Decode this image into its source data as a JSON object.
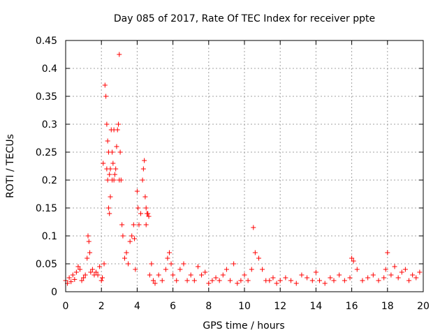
{
  "chart_data": {
    "type": "scatter",
    "title": "Day 085 of 2017, Rate Of TEC Index for receiver ppte",
    "xlabel": "GPS time / hours",
    "ylabel": "ROTI / TECUs",
    "xlim": [
      0,
      20
    ],
    "ylim": [
      0,
      0.45
    ],
    "grid": true,
    "marker": "plus",
    "color": "#ff0000",
    "x_ticks": [
      "0",
      "2",
      "4",
      "6",
      "8",
      "10",
      "12",
      "14",
      "16",
      "18",
      "20"
    ],
    "y_ticks": [
      "0",
      "0.05",
      "0.1",
      "0.15",
      "0.2",
      "0.25",
      "0.3",
      "0.35",
      "0.4",
      "0.45"
    ],
    "series": [
      {
        "name": "ROTI",
        "x": [
          0.0,
          0.1,
          0.2,
          0.3,
          0.4,
          0.5,
          0.6,
          0.7,
          0.8,
          0.9,
          1.0,
          1.1,
          1.2,
          1.25,
          1.3,
          1.35,
          1.4,
          1.5,
          1.6,
          1.7,
          1.8,
          1.9,
          2.0,
          2.05,
          2.1,
          2.15,
          2.2,
          2.25,
          2.3,
          2.3,
          2.35,
          2.35,
          2.4,
          2.4,
          2.45,
          2.45,
          2.5,
          2.5,
          2.55,
          2.6,
          2.6,
          2.65,
          2.7,
          2.7,
          2.75,
          2.8,
          2.85,
          2.9,
          2.95,
          3.0,
          3.0,
          3.05,
          3.1,
          3.15,
          3.2,
          3.3,
          3.4,
          3.5,
          3.6,
          3.7,
          3.8,
          3.85,
          3.9,
          4.0,
          4.05,
          4.1,
          4.2,
          4.3,
          4.35,
          4.4,
          4.45,
          4.5,
          4.5,
          4.55,
          4.6,
          4.65,
          4.7,
          4.8,
          4.9,
          5.0,
          5.2,
          5.4,
          5.6,
          5.7,
          5.8,
          5.9,
          6.0,
          6.2,
          6.4,
          6.6,
          6.8,
          7.0,
          7.2,
          7.4,
          7.6,
          7.8,
          8.0,
          8.2,
          8.4,
          8.6,
          8.8,
          9.0,
          9.2,
          9.4,
          9.6,
          9.8,
          10.0,
          10.2,
          10.4,
          10.5,
          10.6,
          10.8,
          11.0,
          11.2,
          11.4,
          11.6,
          11.8,
          12.0,
          12.3,
          12.6,
          12.9,
          13.2,
          13.5,
          13.8,
          14.0,
          14.2,
          14.5,
          14.8,
          15.0,
          15.3,
          15.6,
          15.9,
          16.0,
          16.1,
          16.3,
          16.6,
          16.9,
          17.2,
          17.5,
          17.8,
          17.9,
          18.0,
          18.2,
          18.4,
          18.6,
          18.8,
          19.0,
          19.2,
          19.4,
          19.6,
          19.8
        ],
        "y": [
          0.02,
          0.015,
          0.025,
          0.018,
          0.03,
          0.022,
          0.035,
          0.045,
          0.04,
          0.02,
          0.025,
          0.03,
          0.06,
          0.1,
          0.09,
          0.07,
          0.035,
          0.04,
          0.03,
          0.035,
          0.03,
          0.045,
          0.02,
          0.025,
          0.23,
          0.05,
          0.37,
          0.35,
          0.3,
          0.22,
          0.27,
          0.2,
          0.25,
          0.15,
          0.21,
          0.14,
          0.22,
          0.17,
          0.29,
          0.2,
          0.25,
          0.23,
          0.29,
          0.2,
          0.21,
          0.22,
          0.26,
          0.29,
          0.3,
          0.425,
          0.2,
          0.25,
          0.2,
          0.12,
          0.1,
          0.06,
          0.07,
          0.05,
          0.09,
          0.1,
          0.12,
          0.095,
          0.04,
          0.18,
          0.15,
          0.12,
          0.14,
          0.2,
          0.22,
          0.235,
          0.17,
          0.15,
          0.12,
          0.14,
          0.14,
          0.135,
          0.03,
          0.05,
          0.02,
          0.015,
          0.03,
          0.02,
          0.04,
          0.06,
          0.07,
          0.05,
          0.03,
          0.02,
          0.04,
          0.05,
          0.02,
          0.03,
          0.02,
          0.045,
          0.03,
          0.035,
          0.015,
          0.02,
          0.025,
          0.02,
          0.03,
          0.04,
          0.02,
          0.05,
          0.015,
          0.02,
          0.03,
          0.02,
          0.04,
          0.115,
          0.07,
          0.06,
          0.04,
          0.02,
          0.02,
          0.025,
          0.015,
          0.02,
          0.025,
          0.02,
          0.015,
          0.03,
          0.025,
          0.02,
          0.035,
          0.02,
          0.015,
          0.025,
          0.02,
          0.03,
          0.02,
          0.025,
          0.06,
          0.055,
          0.04,
          0.02,
          0.025,
          0.03,
          0.02,
          0.025,
          0.04,
          0.07,
          0.03,
          0.045,
          0.025,
          0.035,
          0.04,
          0.02,
          0.03,
          0.025,
          0.035
        ]
      }
    ]
  }
}
